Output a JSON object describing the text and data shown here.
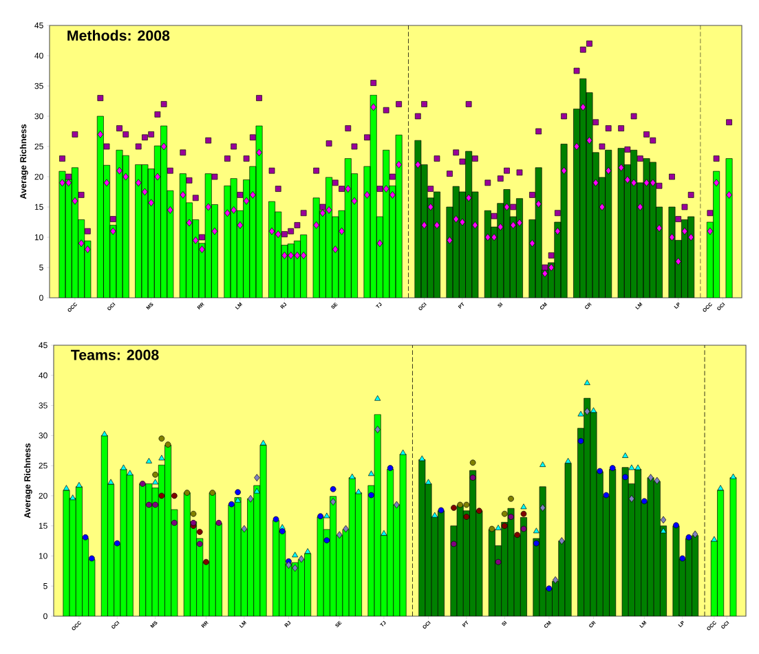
{
  "chart_data": [
    {
      "type": "bar",
      "title": "Methods: 2008",
      "ylabel": "Average Richness",
      "ylim": [
        0,
        45
      ],
      "yticks": [
        0,
        5,
        10,
        15,
        20,
        25,
        30,
        35,
        40,
        45
      ],
      "categories": [
        null,
        null,
        "OCC",
        null,
        null,
        null,
        null,
        null,
        "OCI",
        null,
        null,
        null,
        null,
        null,
        "MS",
        null,
        null,
        null,
        null,
        null,
        null,
        null,
        "RR",
        null,
        null,
        null,
        null,
        null,
        "LM",
        null,
        null,
        null,
        null,
        null,
        null,
        "RJ",
        null,
        null,
        null,
        null,
        null,
        null,
        null,
        "SE",
        null,
        null,
        null,
        null,
        null,
        null,
        "TJ",
        null,
        null,
        null,
        null,
        null,
        null,
        "OCI",
        null,
        null,
        null,
        null,
        null,
        "PT",
        null,
        null,
        null,
        null,
        null,
        "SI",
        null,
        null,
        null,
        null,
        null,
        null,
        "CM",
        null,
        null,
        null,
        null,
        null,
        null,
        "CR",
        null,
        null,
        null,
        null,
        null,
        null,
        null,
        "LM",
        null,
        null,
        null,
        null,
        null,
        "LP",
        null,
        null,
        null,
        null,
        "OCC",
        null,
        "OCI",
        null
      ],
      "series": [
        {
          "color": "#00ff00",
          "values": [
            20.9,
            19.6,
            21.5,
            12.9,
            9.4,
            null,
            30,
            21.9,
            12,
            24.4,
            23.5,
            null,
            22,
            22,
            21.3,
            25.1,
            28.4,
            17.7,
            null,
            20.5,
            15.7,
            12.9,
            9,
            20.5,
            15.4,
            null,
            18.5,
            19.7,
            14.4,
            19.5,
            21.7,
            28.4,
            null,
            15.9,
            14.2,
            8.7,
            8.9,
            9.4,
            10.4,
            null,
            16.5,
            14.4,
            19.9,
            13.4,
            14.4,
            23,
            20.5,
            null,
            21.7,
            33.5,
            13.4,
            24.4,
            18.5,
            26.9,
            null,
            null,
            null,
            null,
            null,
            null,
            null,
            null,
            null,
            null,
            null,
            null,
            null,
            null,
            null,
            null,
            null,
            null,
            null,
            null,
            null,
            null,
            null,
            null,
            null,
            null,
            null,
            null,
            null,
            null,
            null,
            null,
            null,
            null,
            null,
            null,
            null,
            null,
            null,
            null,
            null,
            null,
            null,
            null,
            null,
            null,
            null,
            null,
            12.5,
            20.9,
            null,
            23
          ]
        },
        {
          "color": "#008000",
          "values": [
            null,
            null,
            null,
            null,
            null,
            null,
            null,
            null,
            null,
            null,
            null,
            null,
            null,
            null,
            null,
            null,
            null,
            null,
            null,
            null,
            null,
            null,
            null,
            null,
            null,
            null,
            null,
            null,
            null,
            null,
            null,
            null,
            null,
            null,
            null,
            null,
            null,
            null,
            null,
            null,
            null,
            null,
            null,
            null,
            null,
            null,
            null,
            null,
            null,
            null,
            null,
            null,
            null,
            null,
            null,
            null,
            26,
            22,
            16.5,
            17.5,
            null,
            15,
            18.4,
            17.5,
            24.2,
            17.5,
            null,
            14.4,
            11.7,
            15.6,
            17.9,
            13.4,
            16.4,
            null,
            12.9,
            21.5,
            4.6,
            5.8,
            12.5,
            25.4,
            null,
            31.2,
            36.2,
            33.9,
            24,
            19.9,
            24.4,
            null,
            24.7,
            22,
            24.4,
            19,
            23,
            22.4,
            15,
            null,
            15,
            9.5,
            12.9,
            13.4,
            null,
            null,
            null,
            null,
            null,
            null
          ]
        },
        {
          "type": "scatter",
          "marker": "square",
          "color": "#990099",
          "values": [
            23,
            20,
            27,
            17,
            11,
            null,
            33,
            25,
            13,
            28,
            27,
            null,
            25,
            26.5,
            27,
            30.3,
            32,
            21,
            null,
            24,
            19.4,
            16.5,
            10,
            26,
            20,
            null,
            23,
            25,
            17,
            23,
            26.5,
            33,
            null,
            21,
            18,
            10.5,
            11,
            12,
            14,
            null,
            21,
            15,
            25.5,
            19,
            18,
            28,
            25,
            null,
            26.5,
            35.5,
            18,
            31,
            20,
            32,
            null,
            null,
            30,
            32,
            18,
            23,
            null,
            20.5,
            24,
            22.5,
            32,
            23,
            null,
            19,
            13.5,
            19.7,
            21,
            15,
            20.7,
            null,
            17,
            27.5,
            5,
            7,
            14,
            30,
            null,
            37.5,
            41,
            42,
            29,
            25,
            28,
            null,
            28,
            24.5,
            30,
            23,
            27,
            26,
            18.5,
            null,
            20,
            13,
            15,
            17,
            null,
            null,
            14,
            23,
            null,
            29
          ]
        },
        {
          "type": "scatter",
          "marker": "diamond",
          "color": "#ff00ff",
          "values": [
            19,
            19,
            16,
            9,
            8,
            null,
            27,
            19,
            11,
            21,
            20,
            null,
            19,
            17.5,
            15.7,
            20,
            25,
            14.5,
            null,
            17,
            12.4,
            9.5,
            8,
            15,
            11,
            null,
            14,
            14.5,
            12,
            16,
            17,
            24,
            null,
            11,
            10.5,
            7,
            7,
            7,
            7,
            null,
            12,
            14,
            14.5,
            8,
            11,
            18,
            16,
            null,
            17,
            31.5,
            9,
            18,
            17,
            22,
            null,
            null,
            22,
            12,
            15,
            12,
            null,
            9.5,
            13,
            12.5,
            16.5,
            12,
            null,
            10,
            10,
            11.7,
            15,
            12,
            12.4,
            null,
            9,
            15.5,
            4,
            5,
            11,
            21,
            null,
            25,
            31.5,
            26,
            19,
            15,
            21,
            null,
            21.5,
            19.5,
            19,
            15,
            19,
            19,
            11.5,
            null,
            10,
            6,
            11,
            10,
            null,
            null,
            11,
            19,
            null,
            17
          ]
        }
      ]
    },
    {
      "type": "bar",
      "title": "Teams: 2008",
      "ylabel": "Average Richness",
      "ylim": [
        0,
        45
      ],
      "yticks": [
        0,
        5,
        10,
        15,
        20,
        25,
        30,
        35,
        40,
        45
      ],
      "categories": [
        null,
        null,
        "OCC",
        null,
        null,
        null,
        null,
        null,
        "OCI",
        null,
        null,
        null,
        null,
        null,
        "MS",
        null,
        null,
        null,
        null,
        null,
        null,
        null,
        "RR",
        null,
        null,
        null,
        null,
        null,
        "LM",
        null,
        null,
        null,
        null,
        null,
        null,
        "RJ",
        null,
        null,
        null,
        null,
        null,
        null,
        null,
        "SE",
        null,
        null,
        null,
        null,
        null,
        null,
        "TJ",
        null,
        null,
        null,
        null,
        null,
        null,
        "OCI",
        null,
        null,
        null,
        null,
        null,
        "PT",
        null,
        null,
        null,
        null,
        null,
        "SI",
        null,
        null,
        null,
        null,
        null,
        null,
        "CM",
        null,
        null,
        null,
        null,
        null,
        null,
        "CR",
        null,
        null,
        null,
        null,
        null,
        null,
        null,
        "LM",
        null,
        null,
        null,
        null,
        null,
        "LP",
        null,
        null,
        null,
        null,
        "OCC",
        null,
        "OCI",
        null
      ],
      "series": [
        {
          "color": "#00ff00",
          "values": [
            20.9,
            19.6,
            21.5,
            12.9,
            9.4,
            null,
            30,
            21.9,
            12,
            24.4,
            23.5,
            null,
            22,
            22,
            21.3,
            25.1,
            28.4,
            17.7,
            null,
            20.5,
            15.7,
            12.9,
            9,
            20.5,
            15.4,
            null,
            18.5,
            19.7,
            14.4,
            19.5,
            21.7,
            28.4,
            null,
            15.9,
            14.2,
            8.7,
            8.9,
            9.4,
            10.4,
            null,
            16.5,
            14.4,
            19.9,
            13.4,
            14.4,
            23,
            20.5,
            null,
            21.7,
            33.5,
            13.4,
            24.4,
            18.5,
            26.9,
            null,
            null,
            null,
            null,
            null,
            null,
            null,
            null,
            null,
            null,
            null,
            null,
            null,
            null,
            null,
            null,
            null,
            null,
            null,
            null,
            null,
            null,
            null,
            null,
            null,
            null,
            null,
            null,
            null,
            null,
            null,
            null,
            null,
            null,
            null,
            null,
            null,
            null,
            null,
            null,
            null,
            null,
            null,
            null,
            null,
            null,
            null,
            null,
            12.5,
            20.9,
            null,
            23
          ]
        },
        {
          "color": "#008000",
          "values": [
            null,
            null,
            null,
            null,
            null,
            null,
            null,
            null,
            null,
            null,
            null,
            null,
            null,
            null,
            null,
            null,
            null,
            null,
            null,
            null,
            null,
            null,
            null,
            null,
            null,
            null,
            null,
            null,
            null,
            null,
            null,
            null,
            null,
            null,
            null,
            null,
            null,
            null,
            null,
            null,
            null,
            null,
            null,
            null,
            null,
            null,
            null,
            null,
            null,
            null,
            null,
            null,
            null,
            null,
            null,
            null,
            26,
            22,
            16.5,
            17.5,
            null,
            15,
            18.4,
            17.5,
            24.2,
            17.5,
            null,
            14.4,
            11.7,
            15.6,
            17.9,
            13.4,
            16.4,
            null,
            12.9,
            21.5,
            4.6,
            5.8,
            12.5,
            25.4,
            null,
            31.2,
            36.2,
            33.9,
            24,
            19.9,
            24.4,
            null,
            24.7,
            22,
            24.4,
            19,
            23,
            22.4,
            15,
            null,
            15,
            9.5,
            12.9,
            13.4,
            null,
            null,
            null,
            null,
            null,
            null
          ]
        },
        {
          "type": "scatter",
          "marker": "triangle",
          "color": "#00ffff",
          "values": [
            21.2,
            19.6,
            21.7,
            null,
            null,
            null,
            30.2,
            22.2,
            null,
            24.6,
            23.7,
            null,
            null,
            25.7,
            22.2,
            26.2,
            null,
            null,
            null,
            null,
            null,
            null,
            null,
            null,
            null,
            null,
            null,
            19.2,
            null,
            null,
            20.7,
            28.7,
            null,
            null,
            14.7,
            null,
            10.1,
            null,
            10.7,
            null,
            null,
            16.6,
            null,
            null,
            null,
            23.1,
            20.6,
            null,
            23.6,
            36.1,
            13.7,
            null,
            null,
            27.1,
            null,
            null,
            26.1,
            22.2,
            16.7,
            null,
            null,
            null,
            null,
            null,
            null,
            null,
            null,
            null,
            14.6,
            null,
            null,
            null,
            18.1,
            null,
            14.1,
            25.1,
            null,
            null,
            null,
            25.7,
            null,
            33.5,
            38.7,
            34.1,
            null,
            null,
            null,
            null,
            26.6,
            24.6,
            24.6,
            null,
            null,
            null,
            14.1,
            null,
            null,
            null,
            null,
            null,
            null,
            null,
            12.7,
            21.2,
            null,
            23.1
          ]
        },
        {
          "type": "scatter",
          "marker": "circle",
          "color": "#0000ff",
          "values": [
            null,
            null,
            null,
            13.1,
            9.6,
            null,
            null,
            null,
            12.1,
            null,
            null,
            null,
            null,
            null,
            null,
            null,
            null,
            null,
            null,
            null,
            null,
            null,
            null,
            null,
            null,
            null,
            18.6,
            20.6,
            null,
            null,
            null,
            null,
            null,
            16.1,
            14.1,
            9.1,
            null,
            null,
            null,
            null,
            16.6,
            12.6,
            21.1,
            null,
            null,
            null,
            null,
            null,
            20.1,
            null,
            null,
            24.6,
            null,
            null,
            null,
            null,
            null,
            null,
            null,
            17.6,
            null,
            null,
            null,
            null,
            null,
            null,
            null,
            null,
            null,
            null,
            null,
            null,
            null,
            null,
            12.1,
            null,
            4.6,
            null,
            null,
            null,
            null,
            29.1,
            null,
            null,
            24.1,
            20.1,
            24.6,
            null,
            23.1,
            null,
            null,
            19.1,
            null,
            null,
            null,
            null,
            15.1,
            9.6,
            13.1,
            null,
            null,
            null,
            null,
            null,
            null,
            null
          ]
        },
        {
          "type": "scatter",
          "marker": "diamond",
          "color": "#8080c0",
          "values": [
            null,
            null,
            null,
            null,
            null,
            null,
            null,
            null,
            null,
            null,
            null,
            null,
            null,
            null,
            null,
            null,
            null,
            null,
            null,
            null,
            null,
            null,
            null,
            null,
            null,
            null,
            null,
            null,
            14.5,
            19.5,
            23,
            null,
            null,
            null,
            null,
            8.5,
            8,
            9.5,
            null,
            null,
            null,
            null,
            19,
            13.5,
            14.5,
            null,
            null,
            null,
            null,
            31,
            null,
            null,
            18.5,
            null,
            null,
            null,
            null,
            null,
            null,
            null,
            null,
            null,
            null,
            null,
            null,
            null,
            null,
            null,
            null,
            null,
            null,
            null,
            null,
            null,
            null,
            18,
            null,
            6,
            12.5,
            null,
            null,
            null,
            34,
            null,
            null,
            null,
            null,
            null,
            null,
            19.5,
            null,
            null,
            23,
            22.5,
            16,
            null,
            null,
            null,
            null,
            13.6,
            null,
            null,
            null,
            null,
            null,
            null
          ]
        },
        {
          "type": "scatter",
          "marker": "circle",
          "color": "#808000",
          "values": [
            null,
            null,
            null,
            null,
            null,
            null,
            null,
            null,
            null,
            null,
            null,
            null,
            null,
            null,
            23.5,
            29.5,
            28.5,
            null,
            null,
            20.5,
            17,
            null,
            null,
            20.5,
            null,
            null,
            null,
            null,
            null,
            null,
            null,
            null,
            null,
            null,
            null,
            null,
            null,
            null,
            null,
            null,
            null,
            null,
            null,
            null,
            null,
            null,
            null,
            null,
            null,
            null,
            null,
            null,
            null,
            null,
            null,
            null,
            null,
            null,
            null,
            null,
            null,
            null,
            18.5,
            18.5,
            25.5,
            null,
            null,
            14.5,
            null,
            17,
            19.5,
            null,
            null,
            null,
            null,
            null,
            null,
            null,
            null,
            null,
            null,
            null,
            null,
            null,
            null,
            null,
            null,
            null,
            null,
            null,
            null,
            null,
            null,
            null,
            null,
            null,
            null,
            null,
            null,
            null,
            null,
            null,
            null,
            null,
            null,
            null
          ]
        },
        {
          "type": "scatter",
          "marker": "circle",
          "color": "#800000",
          "values": [
            null,
            null,
            null,
            null,
            null,
            null,
            null,
            null,
            null,
            null,
            null,
            null,
            null,
            null,
            null,
            20,
            null,
            20,
            null,
            null,
            15,
            14,
            9,
            null,
            null,
            null,
            null,
            null,
            null,
            null,
            null,
            null,
            null,
            null,
            null,
            null,
            null,
            null,
            null,
            null,
            null,
            null,
            null,
            null,
            null,
            null,
            null,
            null,
            null,
            null,
            null,
            null,
            null,
            null,
            null,
            null,
            null,
            null,
            null,
            null,
            null,
            18,
            null,
            16.5,
            null,
            17.5,
            null,
            null,
            null,
            15,
            null,
            13.5,
            17,
            null,
            null,
            null,
            null,
            null,
            null,
            null,
            null,
            null,
            null,
            null,
            null,
            null,
            null,
            null,
            null,
            null,
            null,
            null,
            null,
            null,
            null,
            null,
            null,
            null,
            null,
            null,
            null,
            null,
            null,
            null,
            null,
            null
          ]
        },
        {
          "type": "scatter",
          "marker": "circle",
          "color": "#800080",
          "values": [
            null,
            null,
            null,
            null,
            null,
            null,
            null,
            null,
            null,
            null,
            null,
            null,
            22,
            18.5,
            18.5,
            null,
            null,
            15.5,
            null,
            null,
            15.5,
            12,
            null,
            null,
            15.5,
            null,
            null,
            null,
            null,
            null,
            null,
            null,
            null,
            null,
            null,
            null,
            null,
            null,
            null,
            null,
            null,
            null,
            null,
            null,
            null,
            null,
            null,
            null,
            null,
            null,
            null,
            null,
            null,
            null,
            null,
            null,
            null,
            null,
            null,
            null,
            null,
            12,
            null,
            null,
            23,
            null,
            null,
            null,
            9,
            null,
            16.5,
            null,
            14.5,
            null,
            null,
            null,
            null,
            null,
            null,
            null,
            null,
            null,
            null,
            null,
            null,
            null,
            null,
            null,
            null,
            null,
            null,
            null,
            null,
            null,
            null,
            null,
            null,
            null,
            null,
            null,
            null,
            null,
            null,
            null,
            null,
            null
          ]
        }
      ]
    }
  ]
}
